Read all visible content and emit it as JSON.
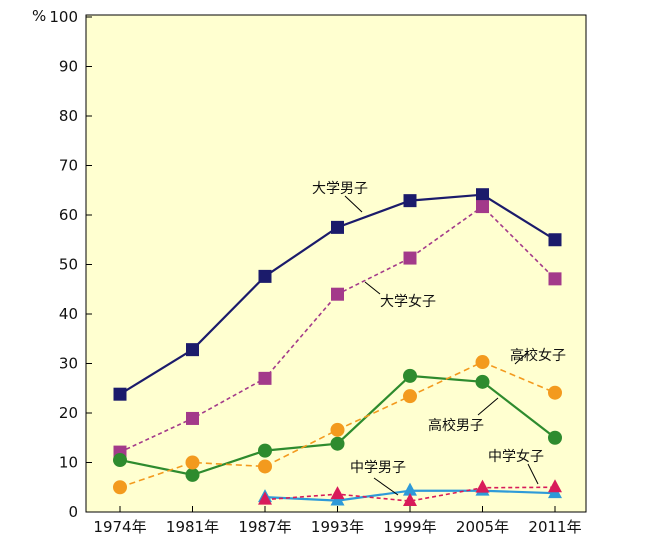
{
  "chart_data": {
    "type": "line",
    "ylabel": "%",
    "ylim": [
      0,
      100
    ],
    "yticks": [
      0,
      10,
      20,
      30,
      40,
      50,
      60,
      70,
      80,
      90,
      100
    ],
    "categories": [
      "1974年",
      "1981年",
      "1987年",
      "1993年",
      "1999年",
      "2005年",
      "2011年"
    ],
    "grid": false,
    "background": "#FFFFD0",
    "series": [
      {
        "name": "大学男子",
        "color": "#1B1B6B",
        "marker": "square",
        "dash": "solid",
        "values": [
          23.8,
          32.8,
          47.6,
          57.5,
          62.9,
          64.1,
          55.0
        ]
      },
      {
        "name": "大学女子",
        "color": "#A33A8A",
        "marker": "square",
        "dash": "dashed",
        "values": [
          12.1,
          18.9,
          27.0,
          44.0,
          51.3,
          61.7,
          47.1
        ]
      },
      {
        "name": "高校男子",
        "color": "#2E8B2E",
        "marker": "circle",
        "dash": "solid",
        "values": [
          10.5,
          7.5,
          12.4,
          13.8,
          27.5,
          26.3,
          15.0
        ]
      },
      {
        "name": "高校女子",
        "color": "#F39A1E",
        "marker": "circle",
        "dash": "dashed",
        "values": [
          5.0,
          10.0,
          9.2,
          16.6,
          23.4,
          30.3,
          24.1
        ]
      },
      {
        "name": "中学男子",
        "color": "#2E9AD8",
        "marker": "triangle",
        "dash": "solid",
        "values": [
          null,
          null,
          3.0,
          2.3,
          4.3,
          4.3,
          3.8
        ]
      },
      {
        "name": "中学女子",
        "color": "#D81B5A",
        "marker": "triangle",
        "dash": "dashed",
        "values": [
          null,
          null,
          2.5,
          3.6,
          2.2,
          4.9,
          5.0
        ]
      }
    ]
  }
}
